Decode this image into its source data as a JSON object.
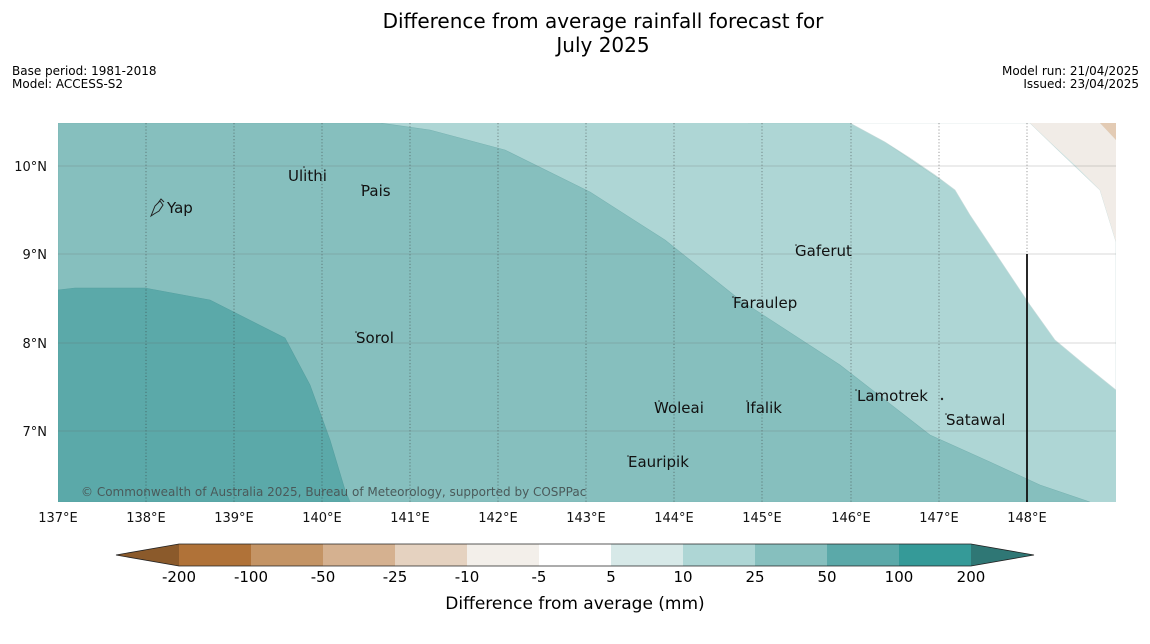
{
  "header": {
    "title_line1": "Difference from average rainfall forecast for",
    "title_line2": "July 2025",
    "base_period": "Base period: 1981-2018",
    "model": "Model: ACCESS-S2",
    "model_run": "Model run: 21/04/2025",
    "issued": "Issued: 23/04/2025"
  },
  "map": {
    "copyright": "© Commonwealth of Australia 2025, Bureau of Meteorology, supported by COSPPac",
    "lat_labels": [
      "10°N",
      "9°N",
      "8°N",
      "7°N"
    ],
    "lon_labels": [
      "137°E",
      "138°E",
      "139°E",
      "140°E",
      "141°E",
      "142°E",
      "143°E",
      "144°E",
      "145°E",
      "146°E",
      "147°E",
      "148°E"
    ],
    "places": [
      "Ulithi",
      "Pais",
      "Yap",
      "Gaferut",
      "Faraulep",
      "Sorol",
      "Lamotrek",
      "Woleai",
      "Ifalik",
      "Satawal",
      "Eauripik"
    ]
  },
  "colorbar": {
    "title": "Difference from average (mm)",
    "labels": [
      "-200",
      "-100",
      "-50",
      "-25",
      "-10",
      "-5",
      "5",
      "10",
      "25",
      "50",
      "100",
      "200"
    ],
    "colors": {
      "below_min": "#8b5a2b",
      "bins": [
        "#b07238",
        "#c49465",
        "#d5b190",
        "#e5d2c0",
        "#f3efea",
        "#ffffff",
        "#d7e9e8",
        "#aed6d5",
        "#86bfbe",
        "#5ba9a9",
        "#359a98"
      ],
      "above_max": "#2f7775"
    }
  }
}
